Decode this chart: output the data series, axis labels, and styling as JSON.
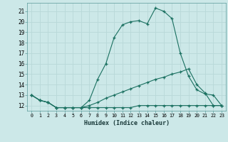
{
  "xlabel": "Humidex (Indice chaleur)",
  "bg_color": "#cce8e8",
  "grid_color": "#b8d8d8",
  "line_color": "#1a7060",
  "xlim": [
    -0.5,
    23.5
  ],
  "ylim": [
    11.5,
    21.8
  ],
  "xticks": [
    0,
    1,
    2,
    3,
    4,
    5,
    6,
    7,
    8,
    9,
    10,
    11,
    12,
    13,
    14,
    15,
    16,
    17,
    18,
    19,
    20,
    21,
    22,
    23
  ],
  "yticks": [
    12,
    13,
    14,
    15,
    16,
    17,
    18,
    19,
    20,
    21
  ],
  "line1_x": [
    0,
    1,
    2,
    3,
    4,
    5,
    6,
    7,
    8,
    9,
    10,
    11,
    12,
    13,
    14,
    15,
    16,
    17,
    18,
    19,
    20,
    21,
    22,
    23
  ],
  "line1_y": [
    13.0,
    12.5,
    12.3,
    11.8,
    11.8,
    11.8,
    11.8,
    12.5,
    14.5,
    16.0,
    18.5,
    19.7,
    20.0,
    20.1,
    19.8,
    21.3,
    21.0,
    20.3,
    17.0,
    14.8,
    13.5,
    13.1,
    13.0,
    12.0
  ],
  "line2_x": [
    0,
    1,
    2,
    3,
    4,
    5,
    6,
    7,
    8,
    9,
    10,
    11,
    12,
    13,
    14,
    15,
    16,
    17,
    18,
    19,
    20,
    21,
    22,
    23
  ],
  "line2_y": [
    13.0,
    12.5,
    12.3,
    11.8,
    11.8,
    11.8,
    11.8,
    12.0,
    12.3,
    12.7,
    13.0,
    13.3,
    13.6,
    13.9,
    14.2,
    14.5,
    14.7,
    15.0,
    15.2,
    15.5,
    14.0,
    13.2,
    12.0,
    12.0
  ],
  "line3_x": [
    0,
    1,
    2,
    3,
    4,
    5,
    6,
    7,
    8,
    9,
    10,
    11,
    12,
    13,
    14,
    15,
    16,
    17,
    18,
    19,
    20,
    21,
    22,
    23
  ],
  "line3_y": [
    13.0,
    12.5,
    12.3,
    11.8,
    11.8,
    11.8,
    11.8,
    11.8,
    11.8,
    11.8,
    11.8,
    11.8,
    11.8,
    12.0,
    12.0,
    12.0,
    12.0,
    12.0,
    12.0,
    12.0,
    12.0,
    12.0,
    12.0,
    12.0
  ]
}
